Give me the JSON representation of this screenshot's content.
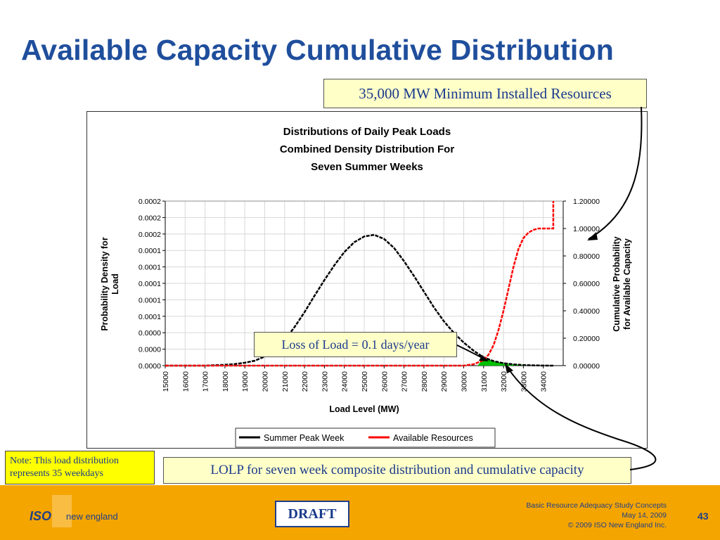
{
  "slide": {
    "title": "Available Capacity Cumulative Distribution",
    "callout_top": "35,000 MW Minimum Installed Resources",
    "callout_lol": "Loss of Load = 0.1 days/year",
    "callout_lolp": "LOLP for seven week composite distribution and cumulative capacity",
    "note": "Note: This load distribution represents 35 weekdays"
  },
  "footer": {
    "logo_iso": "ISO",
    "logo_ne": "new england",
    "draft": "DRAFT",
    "line1": "Basic Resource Adequacy Study Concepts",
    "line2": "May 14, 2009",
    "line3": "© 2009 ISO New England Inc.",
    "page": "43"
  },
  "colors": {
    "title": "#1f4e9c",
    "series_black": "#000000",
    "series_red": "#ff0000",
    "fill_green": "#00c000",
    "footer_bg": "#f5a500"
  },
  "chart_data": {
    "type": "line",
    "title_lines": [
      "Distributions of Daily Peak Loads",
      "Combined Density Distribution For",
      "Seven Summer Weeks"
    ],
    "xlabel": "Load Level (MW)",
    "ylabel_lines": [
      "Probability Density for",
      "Load"
    ],
    "y2label_lines": [
      "Cumulative Probability",
      "for Available Capacity"
    ],
    "x_ticks": [
      "15000",
      "16000",
      "17000",
      "18000",
      "19000",
      "20000",
      "21000",
      "22000",
      "23000",
      "24000",
      "25000",
      "26000",
      "27000",
      "28000",
      "29000",
      "30000",
      "31000",
      "32000",
      "33000",
      "34000"
    ],
    "xlim": [
      15000,
      35000
    ],
    "y_ticks": [
      "0.0000",
      "0.0000",
      "0.0000",
      "0.0001",
      "0.0001",
      "0.0001",
      "0.0001",
      "0.0001",
      "0.0002",
      "0.0002",
      "0.0002"
    ],
    "ylim": [
      0,
      0.0002
    ],
    "y2_ticks": [
      "0.00000",
      "0.20000",
      "0.40000",
      "0.60000",
      "0.80000",
      "1.00000",
      "1.20000"
    ],
    "y2lim": [
      0,
      1.2
    ],
    "grid": true,
    "legend_position": "bottom",
    "series": [
      {
        "name": "Summer Peak Week",
        "axis": "left",
        "color": "#000000",
        "x": [
          15000,
          16000,
          17000,
          17500,
          18000,
          18500,
          19000,
          19500,
          20000,
          20500,
          21000,
          21500,
          22000,
          22500,
          23000,
          23500,
          24000,
          24500,
          25000,
          25500,
          26000,
          26500,
          27000,
          27500,
          28000,
          28500,
          29000,
          29500,
          30000,
          30500,
          31000,
          31500,
          32000,
          32500,
          33000,
          33500,
          34000,
          34500
        ],
        "y": [
          0,
          0,
          0,
          5e-07,
          1e-06,
          2e-06,
          3.5e-06,
          6e-06,
          1.1e-05,
          1.9e-05,
          3.1e-05,
          4.7e-05,
          6.5e-05,
          8.5e-05,
          0.000104,
          0.000122,
          0.000138,
          0.00015,
          0.000157,
          0.000159,
          0.000154,
          0.000143,
          0.000127,
          0.000109,
          9e-05,
          7.1e-05,
          5.4e-05,
          4e-05,
          2.8e-05,
          1.8e-05,
          1e-05,
          5.5e-06,
          3e-06,
          1.5e-06,
          7e-07,
          3e-07,
          1e-07,
          0
        ]
      },
      {
        "name": "Available Resources",
        "axis": "right",
        "color": "#ff0000",
        "x": [
          15000,
          30000,
          30500,
          31000,
          31250,
          31500,
          31750,
          32000,
          32250,
          32500,
          32750,
          33000,
          33250,
          33500,
          33750,
          34000,
          34400,
          34500,
          34500
        ],
        "y": [
          0,
          0,
          0.01,
          0.04,
          0.08,
          0.15,
          0.26,
          0.4,
          0.56,
          0.72,
          0.85,
          0.93,
          0.97,
          0.99,
          1.0,
          1.0,
          1.0,
          1.0,
          1.2
        ]
      }
    ],
    "shaded_overlap": {
      "color": "#00c000",
      "x_from": 30700,
      "x_to": 33000
    }
  }
}
